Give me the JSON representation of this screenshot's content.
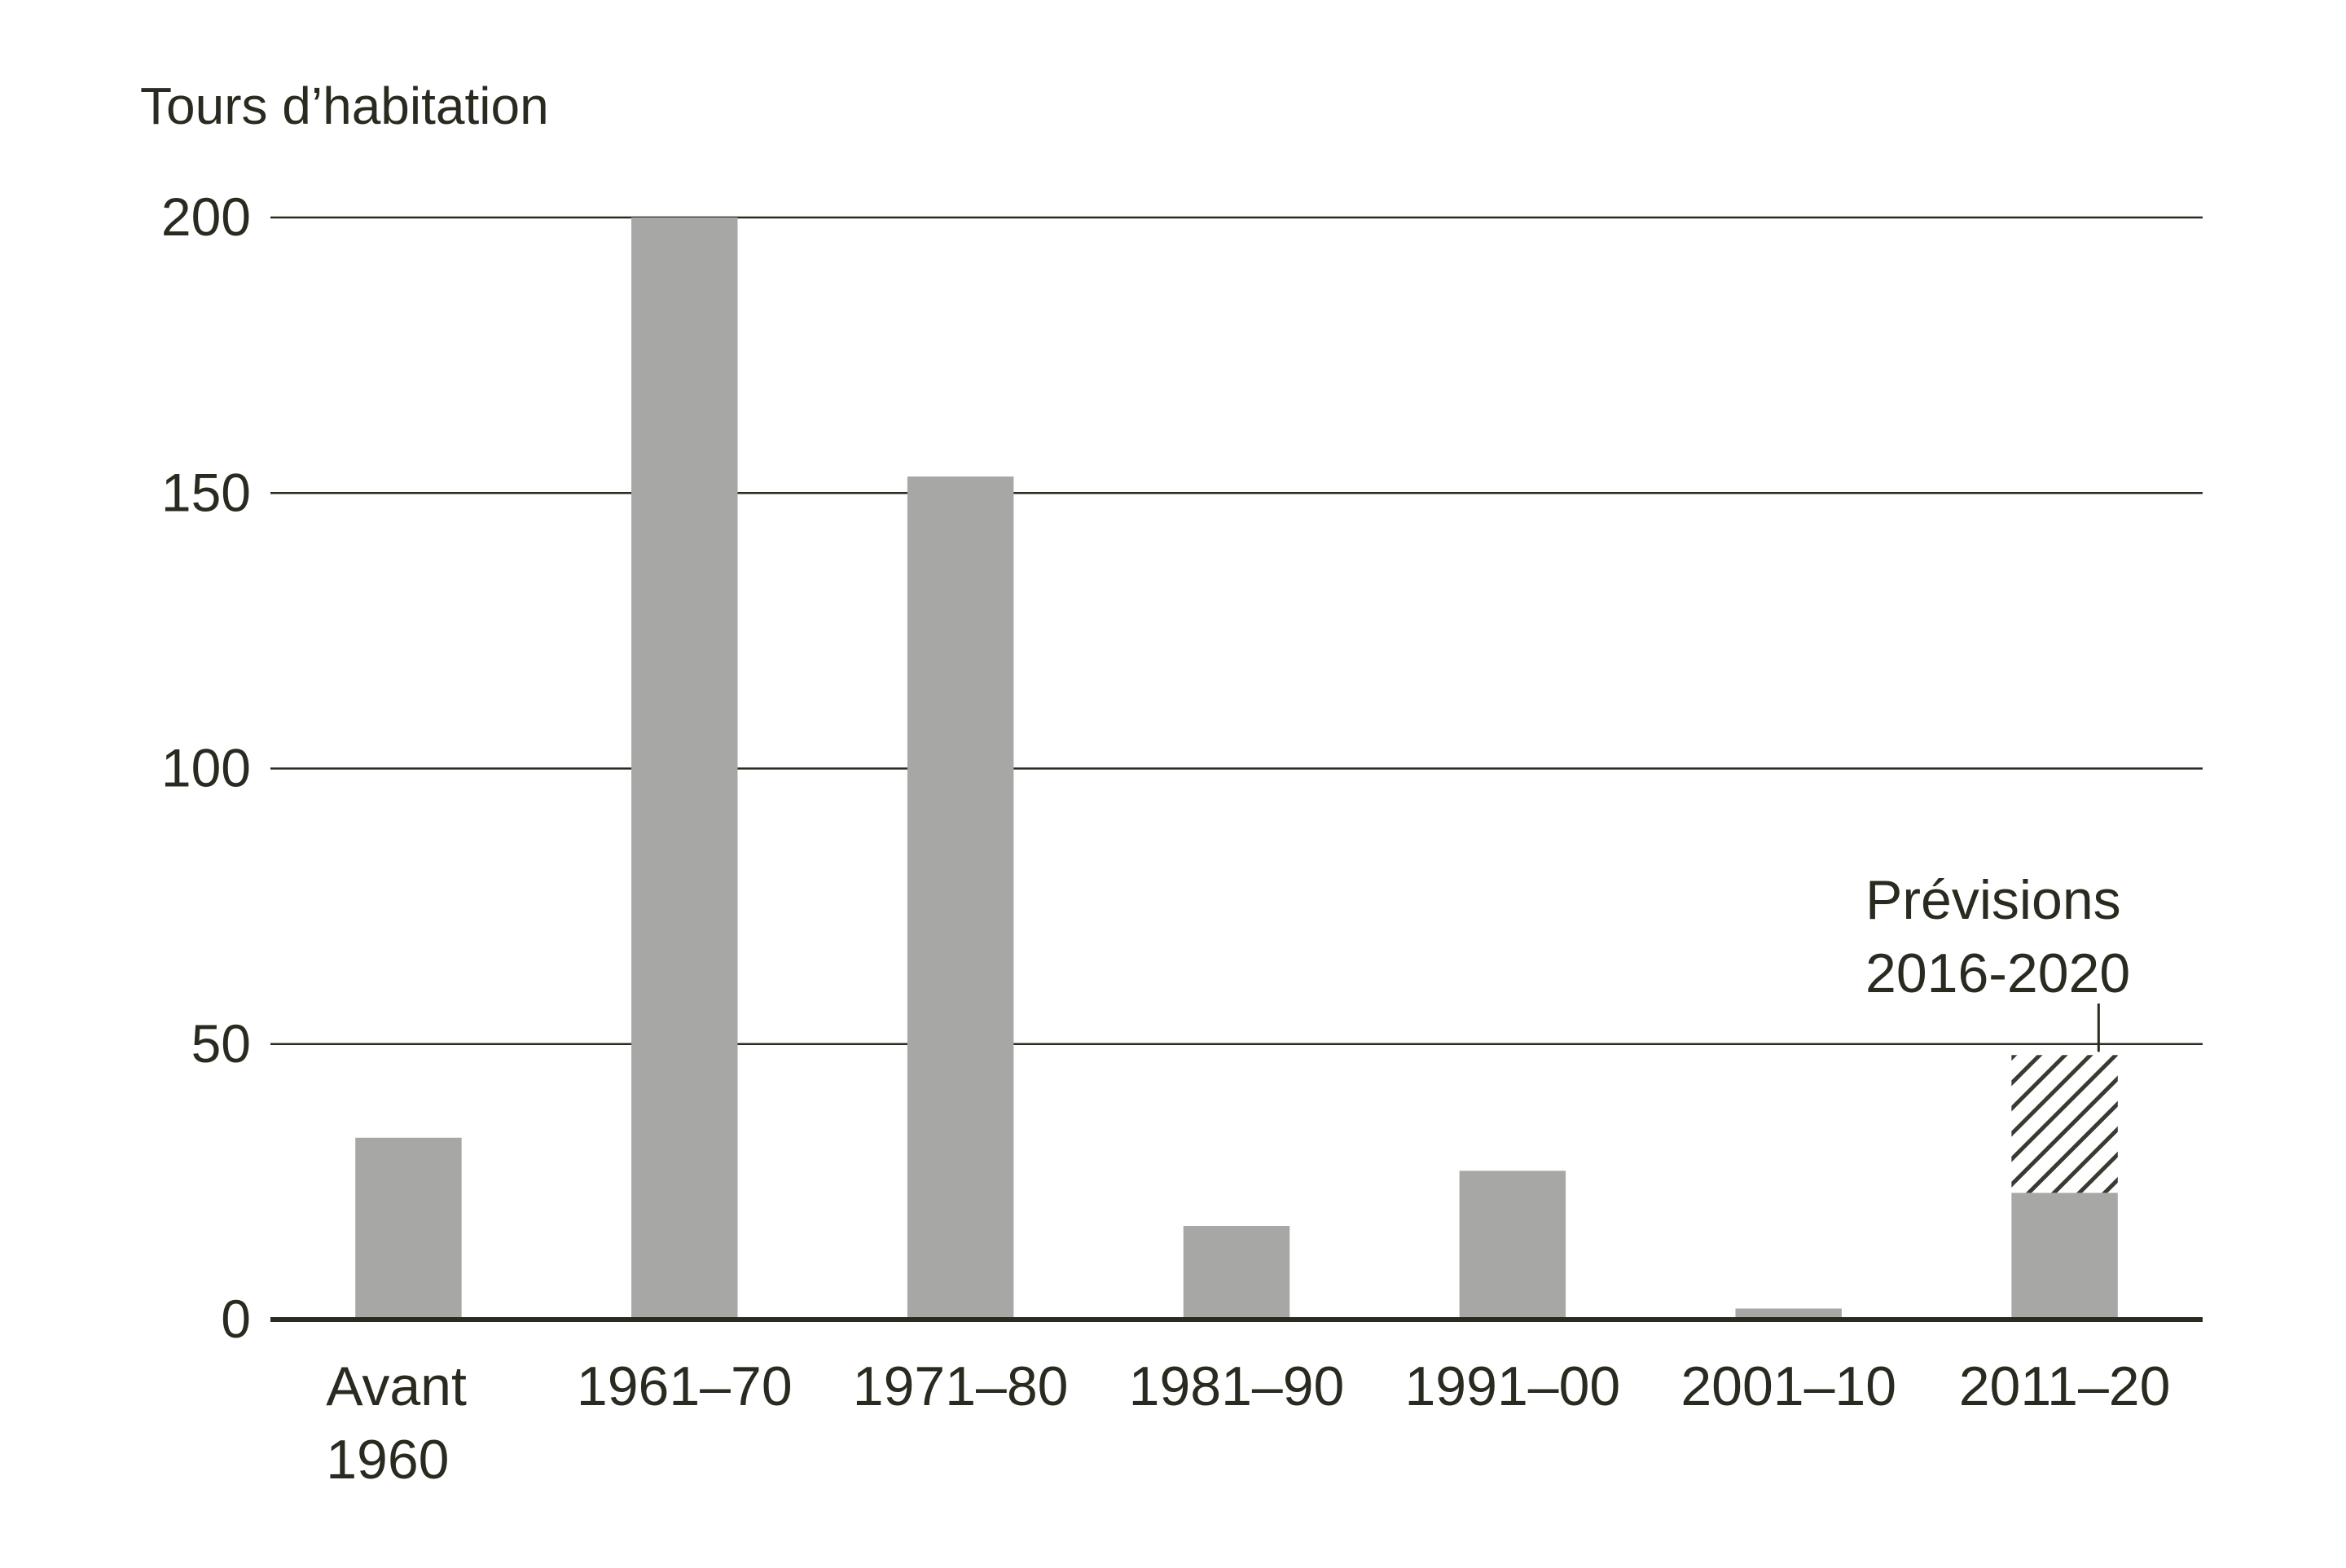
{
  "chart_data": {
    "type": "bar",
    "ylabel": "Tours d’habitation",
    "ylim": [
      0,
      200
    ],
    "yticks": [
      0,
      50,
      100,
      150,
      200
    ],
    "grid": true,
    "categories": [
      [
        "Avant",
        "1960"
      ],
      [
        "1961–70"
      ],
      [
        "1971–80"
      ],
      [
        "1981–90"
      ],
      [
        "1991–00"
      ],
      [
        "2001–10"
      ],
      [
        "2011–20"
      ]
    ],
    "series": [
      {
        "values": [
          33,
          200,
          153,
          17,
          27,
          2,
          23
        ]
      },
      {
        "values": [
          0,
          0,
          0,
          0,
          0,
          0,
          25
        ]
      }
    ],
    "annotation": {
      "lines": [
        "Prévisions",
        "2016-2020"
      ],
      "category_index": 6
    },
    "colors": {
      "bar": "#a7a7a5",
      "text": "#2b2a20",
      "axis": "#2b2a20",
      "grid": "#2b2a20",
      "hatch": "#3a3a33"
    }
  }
}
